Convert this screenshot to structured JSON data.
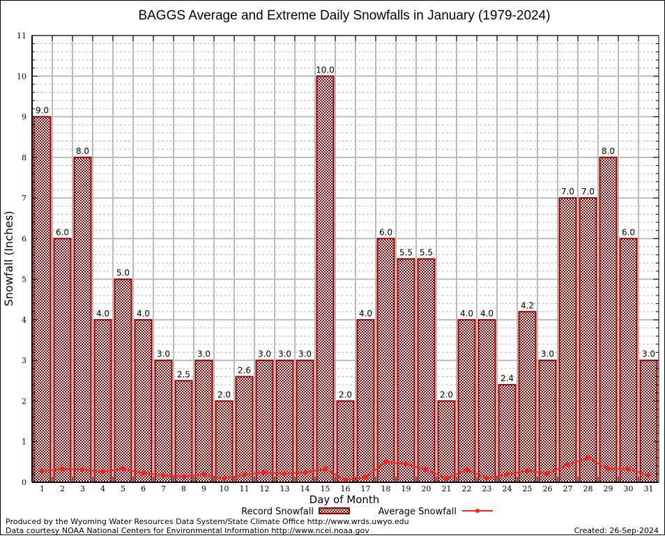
{
  "chart_data": {
    "type": "bar",
    "title": "BAGGS Average and Extreme Daily Snowfalls in January (1979-2024)",
    "xlabel": "Day of Month",
    "ylabel": "Snowfall (Inches)",
    "ylim": [
      0,
      11
    ],
    "yticks": [
      0,
      1,
      2,
      3,
      4,
      5,
      6,
      7,
      8,
      9,
      10,
      11
    ],
    "grid": true,
    "categories": [
      "1",
      "2",
      "3",
      "4",
      "5",
      "6",
      "7",
      "8",
      "9",
      "10",
      "11",
      "12",
      "13",
      "14",
      "15",
      "16",
      "17",
      "18",
      "19",
      "20",
      "21",
      "22",
      "23",
      "24",
      "25",
      "26",
      "27",
      "28",
      "29",
      "30",
      "31"
    ],
    "series": [
      {
        "name": "Record Snowfall",
        "kind": "bar",
        "color": "#990000",
        "values": [
          9.0,
          6.0,
          8.0,
          4.0,
          5.0,
          4.0,
          3.0,
          2.5,
          3.0,
          2.0,
          2.6,
          3.0,
          3.0,
          3.0,
          10.0,
          2.0,
          4.0,
          6.0,
          5.5,
          5.5,
          2.0,
          4.0,
          4.0,
          2.4,
          4.2,
          3.0,
          7.0,
          7.0,
          8.0,
          6.0,
          3.0
        ],
        "labels": [
          "9.0",
          "6.0",
          "8.0",
          "4.0",
          "5.0",
          "4.0",
          "3.0",
          "2.5",
          "3.0",
          "2.0",
          "2.6",
          "3.0",
          "3.0",
          "3.0",
          "10.0",
          "2.0",
          "4.0",
          "6.0",
          "5.5",
          "5.5",
          "2.0",
          "4.0",
          "4.0",
          "2.4",
          "4.2",
          "3.0",
          "7.0",
          "7.0",
          "8.0",
          "6.0",
          "3.0"
        ]
      },
      {
        "name": "Average Snowfall",
        "kind": "line",
        "color": "#ff2020",
        "values": [
          0.27,
          0.33,
          0.31,
          0.26,
          0.33,
          0.22,
          0.17,
          0.14,
          0.19,
          0.09,
          0.19,
          0.24,
          0.21,
          0.24,
          0.33,
          0.05,
          0.12,
          0.5,
          0.45,
          0.31,
          0.09,
          0.31,
          0.1,
          0.19,
          0.29,
          0.21,
          0.43,
          0.6,
          0.33,
          0.33,
          0.17
        ]
      }
    ],
    "legend": {
      "placement": "bottom-center",
      "record_label": "Record Snowfall",
      "average_label": "Average Snowfall"
    }
  },
  "footer": {
    "produced_by": "Produced by the Wyoming Water Resources Data System/State Climate Office http://www.wrds.uwyo.edu",
    "data_courtesy": "Data courtesy NOAA National Centers for Environmental Information http://www.ncei.noaa.gov",
    "created": "Created:  26-Sep-2024"
  }
}
